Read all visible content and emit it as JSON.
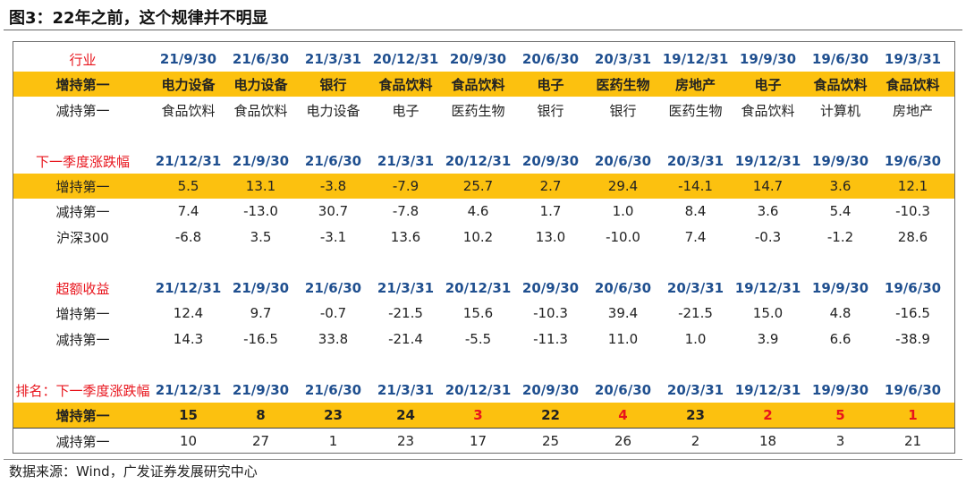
{
  "title": "图3：22年之前，这个规律并不明显",
  "source": "数据来源：Wind，广发证券发展研究中心",
  "colors": {
    "highlight": "#fcc10f",
    "header_blue": "#1f4f8f",
    "red": "#e8141c"
  },
  "sections": [
    {
      "header": {
        "label": "行业",
        "cols": [
          "21/9/30",
          "21/6/30",
          "21/3/31",
          "20/12/31",
          "20/9/30",
          "20/6/30",
          "20/3/31",
          "19/12/31",
          "19/9/30",
          "19/6/30",
          "19/3/31"
        ]
      },
      "rows": [
        {
          "label": "增持第一",
          "highlight": true,
          "bold": true,
          "cells": [
            "电力设备",
            "电力设备",
            "银行",
            "食品饮料",
            "食品饮料",
            "电子",
            "医药生物",
            "房地产",
            "电子",
            "食品饮料",
            "食品饮料"
          ]
        },
        {
          "label": "减持第一",
          "highlight": false,
          "bold": false,
          "cells": [
            "食品饮料",
            "食品饮料",
            "电力设备",
            "电子",
            "医药生物",
            "银行",
            "银行",
            "医药生物",
            "食品饮料",
            "计算机",
            "房地产"
          ]
        }
      ]
    },
    {
      "header": {
        "label": "下一季度涨跌幅",
        "cols": [
          "21/12/31",
          "21/9/30",
          "21/6/30",
          "21/3/31",
          "20/12/31",
          "20/9/30",
          "20/6/30",
          "20/3/31",
          "19/12/31",
          "19/9/30",
          "19/6/30"
        ]
      },
      "rows": [
        {
          "label": "增持第一",
          "highlight": true,
          "bold": false,
          "cells": [
            "5.5",
            "13.1",
            "-3.8",
            "-7.9",
            "25.7",
            "2.7",
            "29.4",
            "-14.1",
            "14.7",
            "3.6",
            "12.1"
          ]
        },
        {
          "label": "减持第一",
          "highlight": false,
          "bold": false,
          "cells": [
            "7.4",
            "-13.0",
            "30.7",
            "-7.8",
            "4.6",
            "1.7",
            "1.0",
            "8.4",
            "3.6",
            "5.4",
            "-10.3"
          ]
        },
        {
          "label": "沪深300",
          "highlight": false,
          "bold": false,
          "cells": [
            "-6.8",
            "3.5",
            "-3.1",
            "13.6",
            "10.2",
            "13.0",
            "-10.0",
            "7.4",
            "-0.3",
            "-1.2",
            "28.6"
          ]
        }
      ]
    },
    {
      "header": {
        "label": "超额收益",
        "cols": [
          "21/12/31",
          "21/9/30",
          "21/6/30",
          "21/3/31",
          "20/12/31",
          "20/9/30",
          "20/6/30",
          "20/3/31",
          "19/12/31",
          "19/9/30",
          "19/6/30"
        ]
      },
      "rows": [
        {
          "label": "增持第一",
          "highlight": false,
          "bold": false,
          "cells": [
            "12.4",
            "9.7",
            "-0.7",
            "-21.5",
            "15.6",
            "-10.3",
            "39.4",
            "-21.5",
            "15.0",
            "4.8",
            "-16.5"
          ]
        },
        {
          "label": "减持第一",
          "highlight": false,
          "bold": false,
          "cells": [
            "14.3",
            "-16.5",
            "33.8",
            "-21.4",
            "-5.5",
            "-11.3",
            "11.0",
            "1.0",
            "3.9",
            "6.6",
            "-38.9"
          ]
        }
      ]
    },
    {
      "header": {
        "label": "排名：下一季度涨跌幅",
        "cols": [
          "21/12/31",
          "21/9/30",
          "21/6/30",
          "21/3/31",
          "20/12/31",
          "20/9/30",
          "20/6/30",
          "20/3/31",
          "19/12/31",
          "19/9/30",
          "19/6/30"
        ]
      },
      "rows": [
        {
          "label": "增持第一",
          "highlight": true,
          "bold": true,
          "cells": [
            "15",
            "8",
            "23",
            "24",
            "3",
            "22",
            "4",
            "23",
            "2",
            "5",
            "1"
          ],
          "red": [
            false,
            false,
            false,
            false,
            true,
            false,
            true,
            false,
            true,
            true,
            true
          ]
        },
        {
          "label": "减持第一",
          "highlight": false,
          "bold": false,
          "cells": [
            "10",
            "27",
            "1",
            "23",
            "17",
            "25",
            "26",
            "2",
            "18",
            "3",
            "21"
          ]
        }
      ]
    }
  ]
}
